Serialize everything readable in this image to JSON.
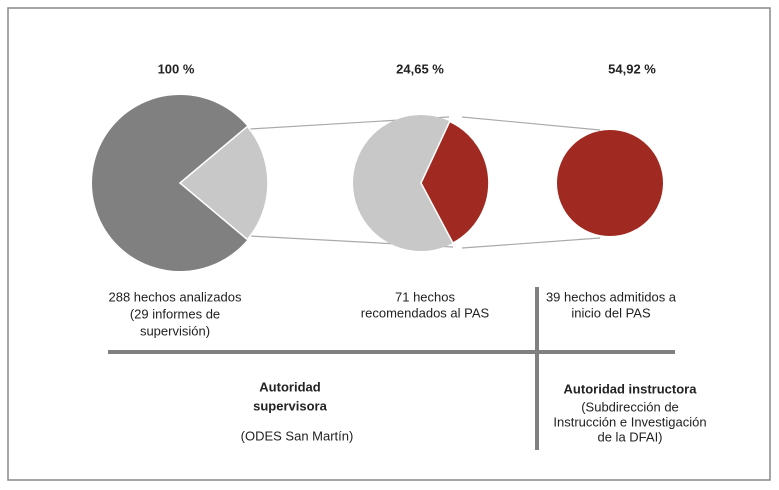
{
  "stages": [
    {
      "percent": "100 %",
      "label": [
        "288 hechos analizados",
        "(29 informes de",
        "supervisión)"
      ]
    },
    {
      "percent": "24,65 %",
      "label": [
        "71 hechos",
        "recomendados al PAS"
      ]
    },
    {
      "percent": "54,92 %",
      "label": [
        "39 hechos admitidos a",
        "inicio del PAS"
      ]
    }
  ],
  "authorities": [
    {
      "title": [
        "Autoridad",
        "supervisora"
      ],
      "detail": [
        "(ODES San Martín)"
      ]
    },
    {
      "title": [
        "Autoridad instructora"
      ],
      "detail": [
        "(Subdirección de",
        "Instrucción e Investigación",
        "de la DFAI)"
      ]
    }
  ]
}
